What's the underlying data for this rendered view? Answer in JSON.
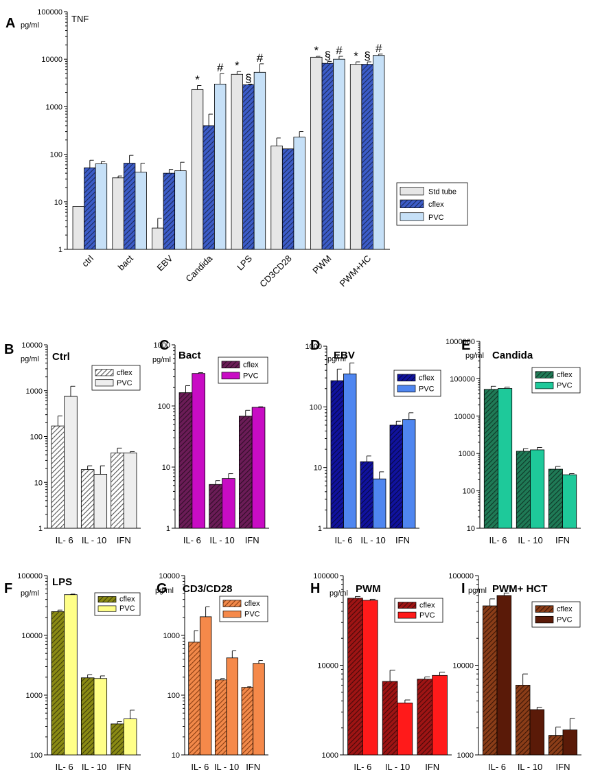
{
  "chart_data": [
    {
      "panel": "A",
      "type": "bar",
      "scale": "log",
      "title": "TNF",
      "ylabel": "pg/ml",
      "ylim": [
        1,
        100000
      ],
      "yticks": [
        "1",
        "10",
        "100",
        "1000",
        "10000",
        "100000"
      ],
      "categories": [
        "ctrl",
        "bact",
        "EBV",
        "Candida",
        "LPS",
        "CD3CD28",
        "PWM",
        "PWM+HC"
      ],
      "legend": "right",
      "series": [
        {
          "name": "Std tube",
          "color": "#e6e6e6",
          "hatch": false,
          "values": [
            8,
            32,
            2.8,
            2300,
            4800,
            150,
            11000,
            7800
          ],
          "errors": [
            8,
            35,
            4.5,
            2800,
            5500,
            220,
            11500,
            8800
          ]
        },
        {
          "name": "cflex",
          "color": "#3c5cc8",
          "hatch": true,
          "values": [
            52,
            65,
            40,
            400,
            2900,
            130,
            8200,
            7800
          ],
          "errors": [
            75,
            95,
            48,
            700,
            3000,
            130,
            9000,
            8800
          ]
        },
        {
          "name": "PVC",
          "color": "#c6e0f7",
          "hatch": false,
          "values": [
            63,
            42,
            45,
            3000,
            5300,
            230,
            10000,
            12000
          ],
          "errors": [
            70,
            65,
            68,
            5000,
            8000,
            300,
            11500,
            12800
          ]
        }
      ],
      "annotations": [
        {
          "category": 3,
          "series": 0,
          "symbol": "*"
        },
        {
          "category": 3,
          "series": 2,
          "symbol": "#"
        },
        {
          "category": 4,
          "series": 0,
          "symbol": "*"
        },
        {
          "category": 4,
          "series": 1,
          "symbol": "§"
        },
        {
          "category": 4,
          "series": 2,
          "symbol": "#"
        },
        {
          "category": 6,
          "series": 0,
          "symbol": "*"
        },
        {
          "category": 6,
          "series": 1,
          "symbol": "§"
        },
        {
          "category": 6,
          "series": 2,
          "symbol": "#"
        },
        {
          "category": 7,
          "series": 0,
          "symbol": "*"
        },
        {
          "category": 7,
          "series": 1,
          "symbol": "§"
        },
        {
          "category": 7,
          "series": 2,
          "symbol": "#"
        }
      ]
    },
    {
      "panel": "B",
      "type": "bar",
      "scale": "log",
      "title": "Ctrl",
      "ylabel": "pg/ml",
      "ylim": [
        1,
        10000
      ],
      "yticks": [
        "1",
        "10",
        "100",
        "1000",
        "10000"
      ],
      "categories": [
        "IL- 6",
        "IL - 10",
        "IFN"
      ],
      "legend": "top-right",
      "series": [
        {
          "name": "cflex",
          "color": "#ffffff",
          "hatch": true,
          "hatchColor": "#555555",
          "values": [
            170,
            19,
            44
          ],
          "errors": [
            280,
            23,
            56
          ]
        },
        {
          "name": "PVC",
          "color": "#eeeeee",
          "hatch": false,
          "values": [
            750,
            15,
            44
          ],
          "errors": [
            1250,
            23,
            47
          ]
        }
      ]
    },
    {
      "panel": "C",
      "type": "bar",
      "scale": "log",
      "title": "Bact",
      "ylabel": "pg/ml",
      "ylim": [
        1,
        1000
      ],
      "yticks": [
        "1",
        "10",
        "100",
        "1000"
      ],
      "categories": [
        "IL- 6",
        "IL - 10",
        "IFN"
      ],
      "legend": "top-right",
      "series": [
        {
          "name": "cflex",
          "color": "#6b1c57",
          "hatch": true,
          "values": [
            165,
            5.2,
            68
          ],
          "errors": [
            215,
            6.0,
            85
          ]
        },
        {
          "name": "PVC",
          "color": "#c80cc4",
          "hatch": false,
          "values": [
            340,
            6.5,
            95
          ],
          "errors": [
            350,
            7.8,
            97
          ]
        }
      ]
    },
    {
      "panel": "D",
      "type": "bar",
      "scale": "log",
      "title": "EBV",
      "ylabel": "pg/ml",
      "ylim": [
        1,
        1000
      ],
      "yticks": [
        "1",
        "10",
        "100",
        "1000"
      ],
      "categories": [
        "IL- 6",
        "IL - 10",
        "IFN"
      ],
      "legend": "top-right",
      "series": [
        {
          "name": "cflex",
          "color": "#10129e",
          "hatch": true,
          "values": [
            270,
            12.5,
            50
          ],
          "errors": [
            420,
            15.5,
            58
          ]
        },
        {
          "name": "PVC",
          "color": "#4f86f0",
          "hatch": false,
          "values": [
            350,
            6.5,
            62
          ],
          "errors": [
            530,
            8.5,
            80
          ]
        }
      ]
    },
    {
      "panel": "E",
      "type": "bar",
      "scale": "log",
      "title": "Candida",
      "ylabel": "pg/ml",
      "ylim": [
        10,
        1000000
      ],
      "yticks": [
        "10",
        "100",
        "1000",
        "10000",
        "100000",
        "1000000"
      ],
      "categories": [
        "IL- 6",
        "IL - 10",
        "IFN"
      ],
      "legend": "top-right",
      "series": [
        {
          "name": "cflex",
          "color": "#1f7a56",
          "hatch": true,
          "values": [
            52000,
            1150,
            380
          ],
          "errors": [
            63000,
            1350,
            450
          ]
        },
        {
          "name": "PVC",
          "color": "#1ec99a",
          "hatch": false,
          "values": [
            55000,
            1250,
            270
          ],
          "errors": [
            60000,
            1450,
            290
          ]
        }
      ]
    },
    {
      "panel": "F",
      "type": "bar",
      "scale": "log",
      "title": "LPS",
      "ylabel": "pg/ml",
      "ylim": [
        100,
        100000
      ],
      "yticks": [
        "100",
        "1000",
        "10000",
        "100000"
      ],
      "categories": [
        "IL- 6",
        "IL - 10",
        "IFN"
      ],
      "legend": "top-right",
      "series": [
        {
          "name": "cflex",
          "color": "#8a8a14",
          "hatch": true,
          "values": [
            25000,
            1950,
            330
          ],
          "errors": [
            26500,
            2200,
            360
          ]
        },
        {
          "name": "PVC",
          "color": "#ffff88",
          "hatch": false,
          "values": [
            48000,
            1900,
            400
          ],
          "errors": [
            49000,
            2100,
            560
          ]
        }
      ]
    },
    {
      "panel": "G",
      "type": "bar",
      "scale": "log",
      "title": "CD3/CD28",
      "ylabel": "pg/ml",
      "ylim": [
        10,
        10000
      ],
      "yticks": [
        "10",
        "100",
        "1000",
        "10000"
      ],
      "categories": [
        "IL- 6",
        "IL - 10",
        "IFN"
      ],
      "legend": "top-right",
      "series": [
        {
          "name": "cflex",
          "color": "#f2894a",
          "hatch": true,
          "hatchColor": "#8a3d12",
          "values": [
            770,
            180,
            135
          ],
          "errors": [
            1200,
            190,
            138
          ]
        },
        {
          "name": "PVC",
          "color": "#f5894a",
          "hatch": false,
          "values": [
            2050,
            420,
            340
          ],
          "errors": [
            3000,
            550,
            380
          ]
        }
      ]
    },
    {
      "panel": "H",
      "type": "bar",
      "scale": "log",
      "title": "PWM",
      "ylabel": "pg/ml",
      "ylim": [
        1000,
        100000
      ],
      "yticks": [
        "1000",
        "10000",
        "100000"
      ],
      "categories": [
        "IL- 6",
        "IL - 10",
        "IFN"
      ],
      "legend": "top-right",
      "series": [
        {
          "name": "cflex",
          "color": "#9e1414",
          "hatch": true,
          "values": [
            56000,
            6600,
            7000
          ],
          "errors": [
            58500,
            8800,
            7400
          ]
        },
        {
          "name": "PVC",
          "color": "#ff1a1a",
          "hatch": false,
          "values": [
            53000,
            3800,
            7700
          ],
          "errors": [
            54500,
            4100,
            8400
          ]
        }
      ]
    },
    {
      "panel": "I",
      "type": "bar",
      "scale": "log",
      "title": "PWM+ HCT",
      "ylabel": "pg/ml",
      "ylim": [
        1000,
        100000
      ],
      "yticks": [
        "1000",
        "10000",
        "100000"
      ],
      "categories": [
        "IL- 6",
        "IL - 10",
        "IFN"
      ],
      "legend": "top-right",
      "series": [
        {
          "name": "cflex",
          "color": "#8a3d18",
          "hatch": true,
          "hatchColor": "#3a1405",
          "values": [
            46000,
            6000,
            1650
          ],
          "errors": [
            55000,
            8000,
            2050
          ]
        },
        {
          "name": "PVC",
          "color": "#5a1a08",
          "hatch": false,
          "values": [
            60000,
            3200,
            1900
          ],
          "errors": [
            64000,
            3400,
            2550
          ]
        }
      ]
    }
  ]
}
